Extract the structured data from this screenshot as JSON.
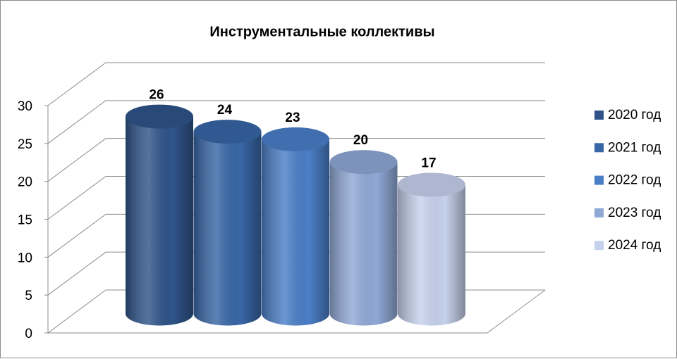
{
  "chart_data": {
    "type": "cylinder-bar",
    "title": "Инструментальные коллективы",
    "categories": [
      null
    ],
    "series": [
      {
        "name": "2020 год",
        "color": "#2f5489",
        "values": [
          26
        ]
      },
      {
        "name": "2021 год",
        "color": "#3866a6",
        "values": [
          24
        ]
      },
      {
        "name": "2022 год",
        "color": "#4a7ec7",
        "values": [
          23
        ]
      },
      {
        "name": "2023 год",
        "color": "#90a8d6",
        "values": [
          20
        ]
      },
      {
        "name": "2024 год",
        "color": "#c6d1ec",
        "values": [
          17
        ]
      }
    ],
    "ylim": [
      0,
      30
    ],
    "yticks": [
      0,
      5,
      10,
      15,
      20,
      25,
      30
    ],
    "grid": true,
    "legend": "right"
  }
}
